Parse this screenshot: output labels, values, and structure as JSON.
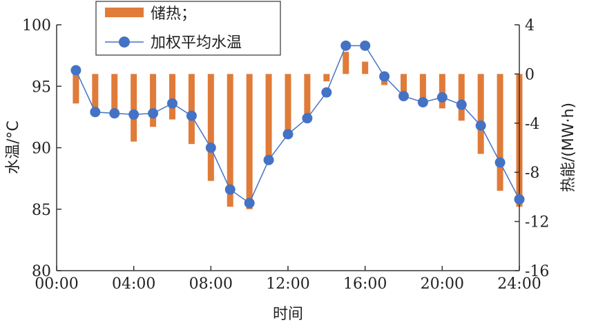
{
  "chart_data": {
    "type": "bar+line",
    "xlabel": "时间",
    "ylabel_left": "水温/°C",
    "ylabel_right": "热能/(MW·h)",
    "x_ticks": [
      "00:00",
      "04:00",
      "08:00",
      "12:00",
      "16:00",
      "20:00",
      "24:00"
    ],
    "x_range": [
      0,
      24
    ],
    "y_left_range": [
      80,
      100
    ],
    "y_left_ticks": [
      "80",
      "85",
      "90",
      "95",
      "100"
    ],
    "y_right_range": [
      -16,
      4
    ],
    "y_right_ticks": [
      "4",
      "0",
      "-4",
      "-8",
      "-12",
      "-16"
    ],
    "legend_position": "top-left",
    "series": [
      {
        "name": "储热；",
        "kind": "bar",
        "axis": "right",
        "color": "#E07B39",
        "x": [
          1,
          2,
          3,
          4,
          5,
          6,
          7,
          8,
          9,
          10,
          11,
          12,
          13,
          14,
          15,
          16,
          17,
          18,
          19,
          20,
          21,
          22,
          23,
          24
        ],
        "values": [
          -2.4,
          -3.0,
          -3.5,
          -5.5,
          -4.3,
          -3.7,
          -5.7,
          -8.7,
          -10.8,
          -11.0,
          -6.7,
          -5.0,
          -3.4,
          -0.6,
          1.8,
          1.0,
          -0.9,
          -1.8,
          -2.3,
          -2.8,
          -3.8,
          -6.5,
          -9.5,
          -10.8
        ]
      },
      {
        "name": "加权平均水温",
        "kind": "line",
        "axis": "left",
        "color": "#4472C4",
        "x": [
          1,
          2,
          3,
          4,
          5,
          6,
          7,
          8,
          9,
          10,
          11,
          12,
          13,
          14,
          15,
          16,
          17,
          18,
          19,
          20,
          21,
          22,
          23,
          24
        ],
        "values": [
          96.3,
          92.9,
          92.8,
          92.7,
          92.8,
          93.6,
          92.6,
          90.0,
          86.6,
          85.5,
          89.0,
          91.1,
          92.4,
          94.5,
          98.3,
          98.3,
          95.8,
          94.2,
          93.7,
          94.1,
          93.5,
          91.8,
          88.8,
          85.8
        ]
      }
    ]
  }
}
